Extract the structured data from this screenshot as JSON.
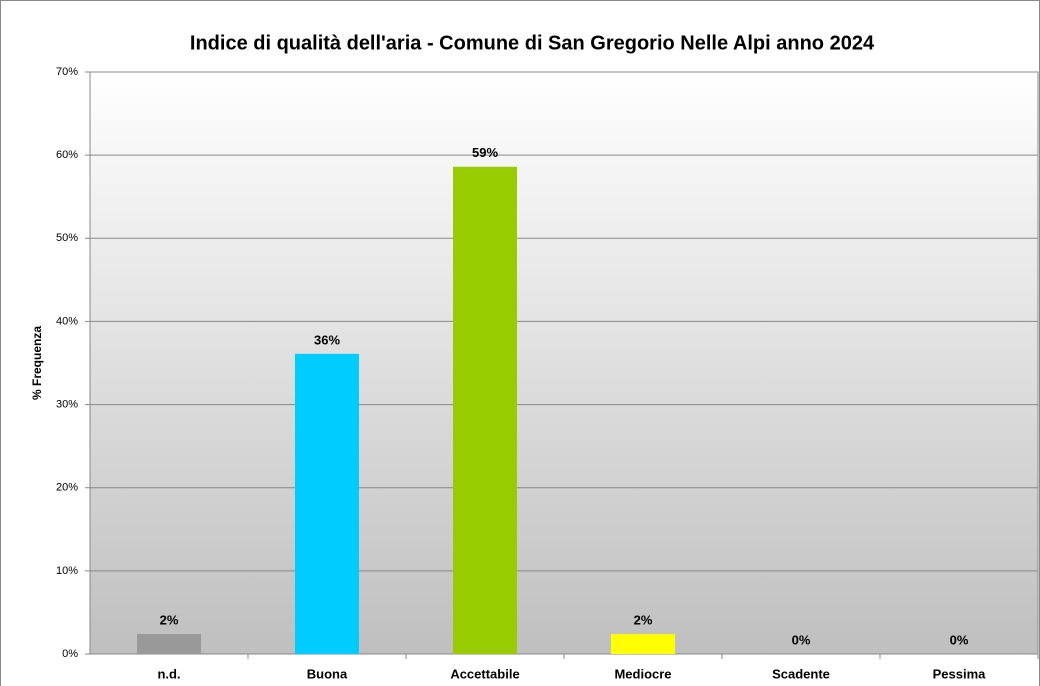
{
  "chart_data": {
    "type": "bar",
    "title": "Indice di qualità dell'aria - Comune di San Gregorio Nelle Alpi anno 2024",
    "y_label": "% Frequenza",
    "categories": [
      "n.d.",
      "Buona",
      "Accettabile",
      "Mediocre",
      "Scadente",
      "Pessima"
    ],
    "values": [
      2.4,
      36.1,
      58.6,
      2.4,
      0,
      0
    ],
    "value_labels": [
      "2%",
      "36%",
      "59%",
      "2%",
      "0%",
      "0%"
    ],
    "colors": [
      "#999999",
      "#00ccff",
      "#99cc00",
      "#ffff00",
      "#ff0000",
      "#993366"
    ],
    "ylim": [
      0,
      70
    ],
    "yticks": [
      {
        "value": 0,
        "label": "0%"
      },
      {
        "value": 10,
        "label": "10%"
      },
      {
        "value": 20,
        "label": "20%"
      },
      {
        "value": 30,
        "label": "30%"
      },
      {
        "value": 40,
        "label": "40%"
      },
      {
        "value": 50,
        "label": "50%"
      },
      {
        "value": 60,
        "label": "60%"
      },
      {
        "value": 70,
        "label": "70%"
      }
    ],
    "grid": true
  }
}
